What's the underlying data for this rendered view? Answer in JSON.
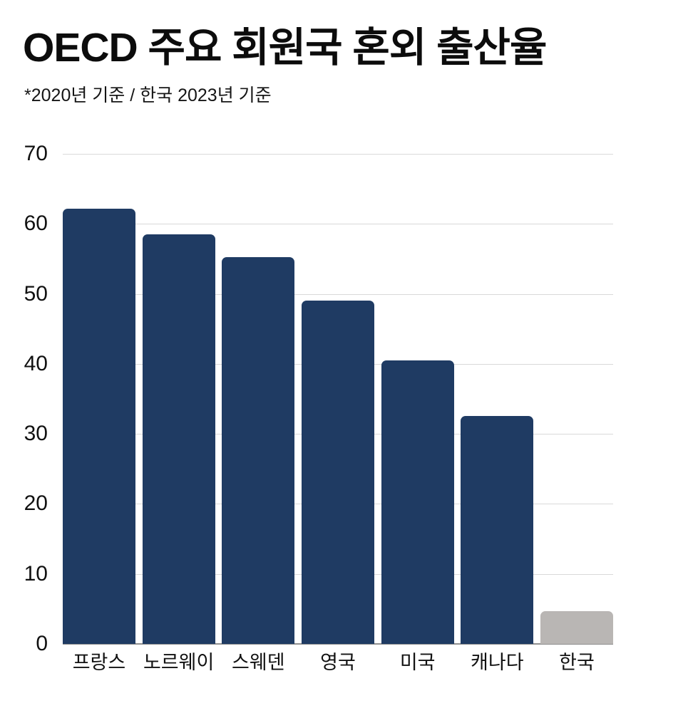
{
  "header": {
    "title": "OECD 주요 회원국 혼외 출산율",
    "subtitle": "*2020년 기준 / 한국 2023년 기준"
  },
  "chart_data": {
    "type": "bar",
    "title": "OECD 주요 회원국 혼외 출산율",
    "subtitle": "*2020년 기준 / 한국 2023년 기준",
    "categories": [
      "프랑스",
      "노르웨이",
      "스웨덴",
      "영국",
      "미국",
      "캐나다",
      "한국"
    ],
    "values": [
      62.2,
      58.5,
      55.2,
      49,
      40.5,
      32.6,
      4.7
    ],
    "highlight_category": "한국",
    "xlabel": "",
    "ylabel": "",
    "ylim": [
      0,
      70
    ],
    "yticks": [
      0,
      10,
      20,
      30,
      40,
      50,
      60,
      70
    ],
    "grid": true,
    "legend": "none",
    "colors": {
      "bar": "#1f3b63",
      "highlight_bar": "#b9b6b4",
      "gridline": "#d9d9d9",
      "axis_line": "#8f8f8f",
      "text": "#111111"
    }
  }
}
